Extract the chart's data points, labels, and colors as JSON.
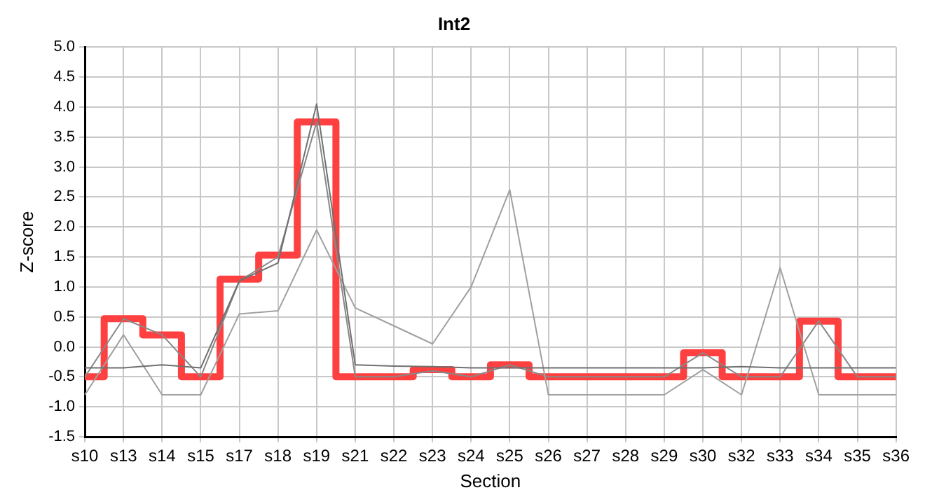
{
  "chart_data": {
    "type": "line",
    "title": "Int2",
    "xlabel": "Section",
    "ylabel": "Z-score",
    "categories": [
      "s10",
      "s13",
      "s14",
      "s15",
      "s17",
      "s18",
      "s19",
      "s21",
      "s22",
      "s23",
      "s24",
      "s25",
      "s26",
      "s27",
      "s28",
      "s29",
      "s30",
      "s32",
      "s33",
      "s34",
      "s35",
      "s36"
    ],
    "ylim": [
      -1.5,
      5
    ],
    "yticks": [
      {
        "value": -1.5,
        "label": "-1.5"
      },
      {
        "value": -1,
        "label": "-1.0"
      },
      {
        "value": -0.5,
        "label": "-0.5"
      },
      {
        "value": 0,
        "label": "0.0"
      },
      {
        "value": 0.5,
        "label": "0.5"
      },
      {
        "value": 1,
        "label": "1.0"
      },
      {
        "value": 1.5,
        "label": "1.5"
      },
      {
        "value": 2,
        "label": "2.0"
      },
      {
        "value": 2.5,
        "label": "2.5"
      },
      {
        "value": 3,
        "label": "3.0"
      },
      {
        "value": 3.5,
        "label": "3.5"
      },
      {
        "value": 4,
        "label": "4.0"
      },
      {
        "value": 4.5,
        "label": "4.5"
      },
      {
        "value": 5,
        "label": "5.0"
      }
    ],
    "grid": true,
    "legend": false,
    "marker": "none",
    "line_style": "solid",
    "series": [
      {
        "color": "#707070",
        "values": [
          -0.35,
          -0.35,
          -0.3,
          -0.35,
          1.1,
          1.4,
          4.05,
          -0.3,
          -0.32,
          -0.33,
          -0.35,
          -0.35,
          -0.35,
          -0.35,
          -0.35,
          -0.35,
          -0.35,
          -0.33,
          -0.35,
          -0.35,
          -0.35,
          -0.35
        ]
      },
      {
        "color": "#a0a0a0",
        "values": [
          -0.8,
          0.2,
          -0.8,
          -0.8,
          0.55,
          0.6,
          1.95,
          0.65,
          0.35,
          0.05,
          1.0,
          2.62,
          -0.8,
          -0.8,
          -0.8,
          -0.8,
          -0.38,
          -0.8,
          1.32,
          -0.8,
          -0.8,
          -0.8
        ]
      },
      {
        "color": "#888888",
        "values": [
          -0.5,
          0.47,
          0.2,
          -0.5,
          1.1,
          1.5,
          3.75,
          -0.5,
          -0.5,
          -0.4,
          -0.5,
          -0.3,
          -0.5,
          -0.5,
          -0.5,
          -0.5,
          -0.1,
          -0.5,
          -0.5,
          0.43,
          -0.5,
          -0.5
        ]
      },
      {
        "type": "step",
        "color": "#ff4040",
        "values": [
          -0.5,
          0.47,
          0.2,
          -0.5,
          1.13,
          1.53,
          3.75,
          -0.5,
          -0.5,
          -0.38,
          -0.5,
          -0.3,
          -0.5,
          -0.5,
          -0.5,
          -0.5,
          -0.1,
          -0.5,
          -0.5,
          0.43,
          -0.5,
          -0.5
        ]
      }
    ]
  }
}
